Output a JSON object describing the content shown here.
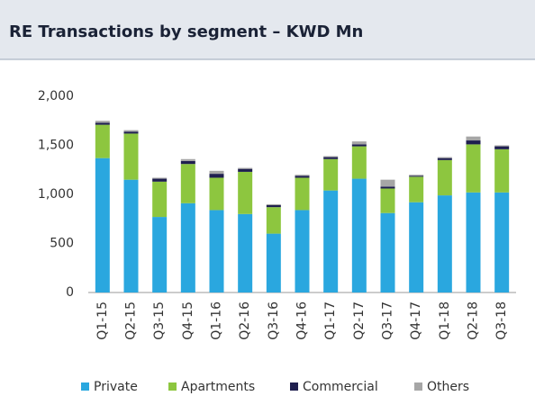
{
  "chart_data": {
    "type": "stacked_bar",
    "title": "RE Transactions by segment – KWD Mn",
    "categories": [
      "Q1-15",
      "Q2-15",
      "Q3-15",
      "Q4-15",
      "Q1-16",
      "Q2-16",
      "Q3-16",
      "Q4-16",
      "Q1-17",
      "Q2-17",
      "Q3-17",
      "Q4-17",
      "Q1-18",
      "Q2-18",
      "Q3-18"
    ],
    "series": [
      {
        "name": "Private",
        "color": "#2aa7df",
        "values": [
          1370,
          1150,
          770,
          910,
          840,
          800,
          600,
          840,
          1040,
          1160,
          810,
          920,
          990,
          1020,
          1020
        ]
      },
      {
        "name": "Apartments",
        "color": "#8dc63f",
        "values": [
          340,
          470,
          360,
          400,
          330,
          430,
          270,
          330,
          320,
          330,
          250,
          260,
          360,
          490,
          440
        ]
      },
      {
        "name": "Commercial",
        "color": "#1f1f4f",
        "values": [
          20,
          20,
          30,
          30,
          40,
          30,
          20,
          20,
          20,
          20,
          20,
          10,
          20,
          40,
          30
        ]
      },
      {
        "name": "Others",
        "color": "#a6a6a6",
        "values": [
          20,
          15,
          10,
          20,
          30,
          10,
          10,
          10,
          10,
          30,
          70,
          10,
          10,
          40,
          10
        ]
      }
    ],
    "ylim": [
      0,
      2000
    ],
    "yticks": [
      0,
      500,
      {
        "value": 1000,
        "label": "1,000"
      },
      {
        "value": 1500,
        "label": "1,500"
      },
      {
        "value": 2000,
        "label": "2,000"
      }
    ],
    "legend": "bottom"
  }
}
